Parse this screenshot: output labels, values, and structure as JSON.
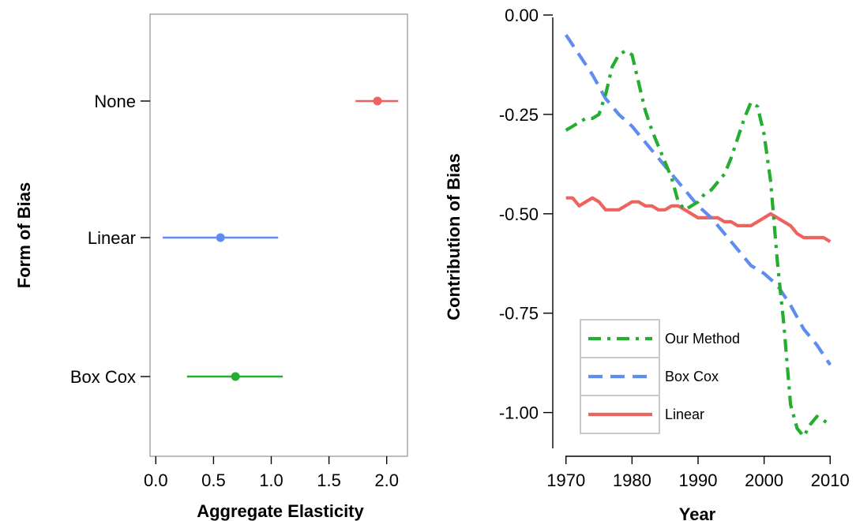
{
  "chart_data": [
    {
      "type": "forest",
      "xlabel": "Aggregate Elasticity",
      "ylabel": "Form of Bias",
      "xlim": [
        -0.05,
        2.18
      ],
      "xticks": [
        "0.0",
        "0.5",
        "1.0",
        "1.5",
        "2.0"
      ],
      "xtick_values": [
        0.0,
        0.5,
        1.0,
        1.5,
        2.0
      ],
      "grid": false,
      "categories": [
        "None",
        "Linear",
        "Box Cox"
      ],
      "points": [
        {
          "category": "None",
          "estimate": 1.92,
          "lower": 1.73,
          "upper": 2.1,
          "color": "#F0625E"
        },
        {
          "category": "Linear",
          "estimate": 0.56,
          "lower": 0.06,
          "upper": 1.06,
          "color": "#5E8CF0"
        },
        {
          "category": "Box Cox",
          "estimate": 0.69,
          "lower": 0.27,
          "upper": 1.1,
          "color": "#23AE2F"
        }
      ]
    },
    {
      "type": "line",
      "xlabel": "Year",
      "ylabel": "Contribution of Bias",
      "xlim": [
        1968,
        2012
      ],
      "ylim": [
        -1.11,
        0.01
      ],
      "xticks": [
        "1970",
        "1980",
        "1990",
        "2000",
        "2010"
      ],
      "xtick_values": [
        1970,
        1980,
        1990,
        2000,
        2010
      ],
      "yticks": [
        "0.00",
        "-0.25",
        "-0.50",
        "-0.75",
        "-1.00"
      ],
      "ytick_values": [
        0.0,
        -0.25,
        -0.5,
        -0.75,
        -1.0
      ],
      "grid": false,
      "legend_position": "bottom-left",
      "series": [
        {
          "name": "Our Method",
          "color": "#23AE2F",
          "dash": "dash-dot",
          "x": [
            1970,
            1971,
            1972,
            1973,
            1974,
            1975,
            1976,
            1977,
            1978,
            1979,
            1980,
            1981,
            1982,
            1983,
            1984,
            1985,
            1986,
            1987,
            1988,
            1989,
            1990,
            1991,
            1992,
            1993,
            1994,
            1995,
            1996,
            1997,
            1998,
            1999,
            2000,
            2001,
            2002,
            2003,
            2004,
            2005,
            2006,
            2007,
            2008,
            2009,
            2010
          ],
          "values": [
            -0.29,
            -0.28,
            -0.27,
            -0.26,
            -0.26,
            -0.25,
            -0.2,
            -0.13,
            -0.1,
            -0.09,
            -0.1,
            -0.17,
            -0.24,
            -0.29,
            -0.33,
            -0.37,
            -0.41,
            -0.47,
            -0.49,
            -0.48,
            -0.47,
            -0.45,
            -0.44,
            -0.42,
            -0.4,
            -0.36,
            -0.31,
            -0.26,
            -0.22,
            -0.23,
            -0.3,
            -0.42,
            -0.62,
            -0.78,
            -0.98,
            -1.04,
            -1.06,
            -1.03,
            -1.01,
            -1.02,
            -1.03
          ]
        },
        {
          "name": "Box Cox",
          "color": "#5E8CF0",
          "dash": "dashed",
          "x": [
            1970,
            1972,
            1974,
            1976,
            1978,
            1980,
            1982,
            1984,
            1986,
            1988,
            1990,
            1992,
            1994,
            1996,
            1998,
            2000,
            2002,
            2004,
            2006,
            2008,
            2010
          ],
          "values": [
            -0.05,
            -0.1,
            -0.15,
            -0.21,
            -0.25,
            -0.28,
            -0.32,
            -0.36,
            -0.4,
            -0.44,
            -0.48,
            -0.51,
            -0.55,
            -0.59,
            -0.63,
            -0.65,
            -0.68,
            -0.73,
            -0.79,
            -0.83,
            -0.88
          ]
        },
        {
          "name": "Linear",
          "color": "#F0625E",
          "dash": "solid",
          "x": [
            1970,
            1971,
            1972,
            1973,
            1974,
            1975,
            1976,
            1977,
            1978,
            1979,
            1980,
            1981,
            1982,
            1983,
            1984,
            1985,
            1986,
            1987,
            1988,
            1989,
            1990,
            1991,
            1992,
            1993,
            1994,
            1995,
            1996,
            1997,
            1998,
            1999,
            2000,
            2001,
            2002,
            2003,
            2004,
            2005,
            2006,
            2007,
            2008,
            2009,
            2010
          ],
          "values": [
            -0.46,
            -0.46,
            -0.48,
            -0.47,
            -0.46,
            -0.47,
            -0.49,
            -0.49,
            -0.49,
            -0.48,
            -0.47,
            -0.47,
            -0.48,
            -0.48,
            -0.49,
            -0.49,
            -0.48,
            -0.48,
            -0.49,
            -0.5,
            -0.51,
            -0.51,
            -0.51,
            -0.51,
            -0.52,
            -0.52,
            -0.53,
            -0.53,
            -0.53,
            -0.52,
            -0.51,
            -0.5,
            -0.51,
            -0.52,
            -0.53,
            -0.55,
            -0.56,
            -0.56,
            -0.56,
            -0.56,
            -0.57
          ]
        }
      ]
    }
  ]
}
